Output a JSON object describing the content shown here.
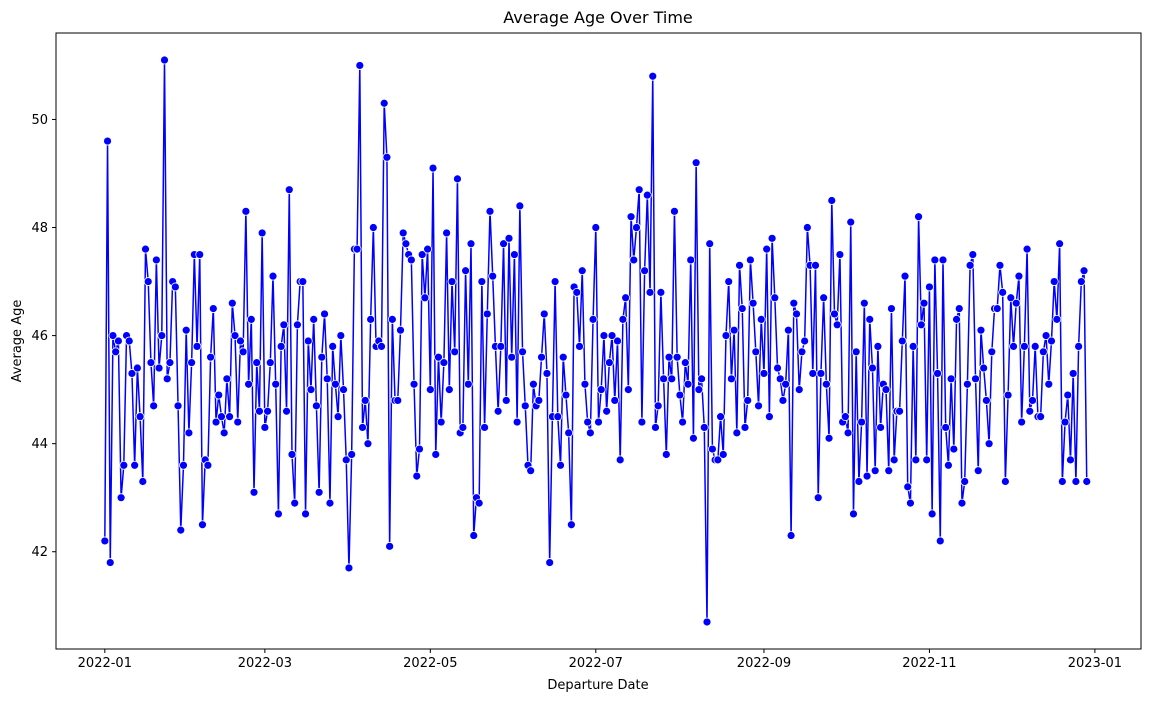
{
  "chart_data": {
    "type": "line",
    "title": "Average Age Over Time",
    "xlabel": "Departure Date",
    "ylabel": "Average Age",
    "x_ticks": [
      "2022-01",
      "2022-03",
      "2022-05",
      "2022-07",
      "2022-09",
      "2022-11",
      "2023-01"
    ],
    "y_ticks": [
      42,
      44,
      46,
      48,
      50
    ],
    "xlim": [
      "2021-12-14",
      "2023-01-18"
    ],
    "ylim": [
      40.2,
      51.6
    ],
    "grid": false,
    "series_color": "#0000ff",
    "marker_edge_color": "#ffffff",
    "x_start": "2022-01-01",
    "x_step_days": 1,
    "values": [
      42.2,
      49.6,
      41.8,
      46.0,
      45.7,
      45.9,
      43.0,
      43.6,
      46.0,
      45.9,
      45.3,
      43.6,
      45.4,
      44.5,
      43.3,
      47.6,
      47.0,
      45.5,
      44.7,
      47.4,
      45.4,
      46.0,
      51.1,
      45.2,
      45.5,
      47.0,
      46.9,
      44.7,
      42.4,
      43.6,
      46.1,
      44.2,
      45.5,
      47.5,
      45.8,
      47.5,
      42.5,
      43.7,
      43.6,
      45.6,
      46.5,
      44.4,
      44.9,
      44.5,
      44.2,
      45.2,
      44.5,
      46.6,
      46.0,
      44.4,
      45.9,
      45.7,
      48.3,
      45.1,
      46.3,
      43.1,
      45.5,
      44.6,
      47.9,
      44.3,
      44.6,
      45.5,
      47.1,
      45.1,
      42.7,
      45.8,
      46.2,
      44.6,
      48.7,
      43.8,
      42.9,
      46.2,
      47.0,
      47.0,
      42.7,
      45.9,
      45.0,
      46.3,
      44.7,
      43.1,
      45.6,
      46.4,
      45.2,
      42.9,
      45.8,
      45.1,
      44.5,
      46.0,
      45.0,
      43.7,
      41.7,
      43.8,
      47.6,
      47.6,
      51.0,
      44.3,
      44.8,
      44.0,
      46.3,
      48.0,
      45.8,
      45.9,
      45.8,
      50.3,
      49.3,
      42.1,
      46.3,
      44.8,
      44.8,
      46.1,
      47.9,
      47.7,
      47.5,
      47.4,
      45.1,
      43.4,
      43.9,
      47.5,
      46.7,
      47.6,
      45.0,
      49.1,
      43.8,
      45.6,
      44.4,
      45.5,
      47.9,
      45.0,
      47.0,
      45.7,
      48.9,
      44.2,
      44.3,
      47.2,
      45.1,
      47.7,
      42.3,
      43.0,
      42.9,
      47.0,
      44.3,
      46.4,
      48.3,
      47.1,
      45.8,
      44.6,
      45.8,
      47.7,
      44.8,
      47.8,
      45.6,
      47.5,
      44.4,
      48.4,
      45.7,
      44.7,
      43.6,
      43.5,
      45.1,
      44.7,
      44.8,
      45.6,
      46.4,
      45.3,
      41.8,
      44.5,
      47.0,
      44.5,
      43.6,
      45.6,
      44.9,
      44.2,
      42.5,
      46.9,
      46.8,
      45.8,
      47.2,
      45.1,
      44.4,
      44.2,
      46.3,
      48.0,
      44.4,
      45.0,
      46.0,
      44.6,
      45.5,
      46.0,
      44.8,
      45.9,
      43.7,
      46.3,
      46.7,
      45.0,
      48.2,
      47.4,
      48.0,
      48.7,
      44.4,
      47.2,
      48.6,
      46.8,
      50.8,
      44.3,
      44.7,
      46.8,
      45.2,
      43.8,
      45.6,
      45.2,
      48.3,
      45.6,
      44.9,
      44.4,
      45.5,
      45.1,
      47.4,
      44.1,
      49.2,
      45.0,
      45.2,
      44.3,
      40.7,
      47.7,
      43.9,
      43.7,
      43.7,
      44.5,
      43.8,
      46.0,
      47.0,
      45.2,
      46.1,
      44.2,
      47.3,
      46.5,
      44.3,
      44.8,
      47.4,
      46.6,
      45.7,
      44.7,
      46.3,
      45.3,
      47.6,
      44.5,
      47.8,
      46.7,
      45.4,
      45.2,
      44.8,
      45.1,
      46.1,
      42.3,
      46.6,
      46.4,
      45.0,
      45.7,
      45.9,
      48.0,
      47.3,
      45.3,
      47.3,
      43.0,
      45.3,
      46.7,
      45.1,
      44.1,
      48.5,
      46.4,
      46.2,
      47.5,
      44.4,
      44.5,
      44.2,
      48.1,
      42.7,
      45.7,
      43.3,
      44.4,
      46.6,
      43.4,
      46.3,
      45.4,
      43.5,
      45.8,
      44.3,
      45.1,
      45.0,
      43.5,
      46.5,
      43.7,
      44.6,
      44.6,
      45.9,
      47.1,
      43.2,
      42.9,
      45.8,
      43.7,
      48.2,
      46.2,
      46.6,
      43.7,
      46.9,
      42.7,
      47.4,
      45.3,
      42.2,
      47.4,
      44.3,
      43.6,
      45.2,
      43.9,
      46.3,
      46.5,
      42.9,
      43.3,
      45.1,
      47.3,
      47.5,
      45.2,
      43.5,
      46.1,
      45.4,
      44.8,
      44.0,
      45.7,
      46.5,
      46.5,
      47.3,
      46.8,
      43.3,
      44.9,
      46.7,
      45.8,
      46.6,
      47.1,
      44.4,
      45.8,
      47.6,
      44.6,
      44.8,
      45.8,
      44.5,
      44.5,
      45.7,
      46.0,
      45.1,
      45.9,
      47.0,
      46.3,
      47.7,
      43.3,
      44.4,
      44.9,
      43.7,
      45.3,
      43.3,
      45.8,
      47.0,
      47.2,
      43.3
    ]
  }
}
